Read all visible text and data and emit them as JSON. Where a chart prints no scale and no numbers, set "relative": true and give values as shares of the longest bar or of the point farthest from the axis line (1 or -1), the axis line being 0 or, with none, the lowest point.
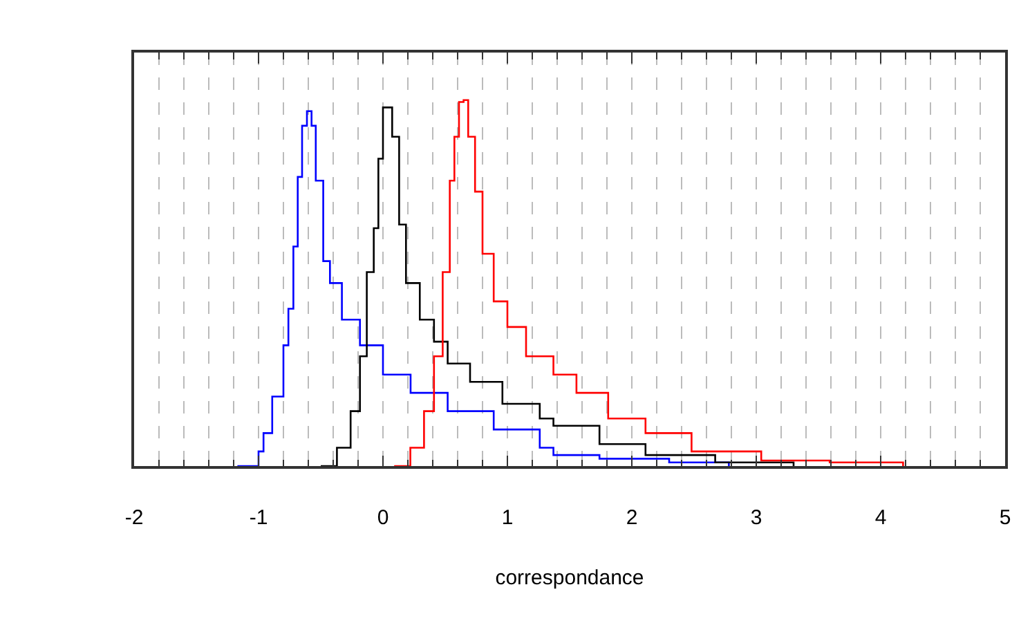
{
  "chart_data": {
    "type": "step",
    "relative": true,
    "xlabel": "correspondance",
    "xlim": [
      -2,
      5
    ],
    "xticks": [
      -2,
      -1,
      0,
      1,
      2,
      3,
      4,
      5
    ],
    "grid": "x",
    "legend": false,
    "series": [
      {
        "color": "#0000ff",
        "x": [
          -1.17,
          -1.0,
          -0.96,
          -0.89,
          -0.8,
          -0.76,
          -0.72,
          -0.685,
          -0.65,
          -0.611,
          -0.574,
          -0.54,
          -0.48,
          -0.426,
          -0.33,
          -0.185,
          0.0,
          0.222,
          0.52,
          0.89,
          1.26,
          1.37,
          1.74,
          2.3,
          2.78
        ],
        "values": [
          0,
          0.04,
          0.09,
          0.19,
          0.33,
          0.43,
          0.6,
          0.79,
          0.93,
          0.97,
          0.93,
          0.78,
          0.56,
          0.5,
          0.4,
          0.33,
          0.25,
          0.2,
          0.15,
          0.1,
          0.05,
          0.03,
          0.02,
          0.01,
          0
        ]
      },
      {
        "color": "#000000",
        "x": [
          -0.5,
          -0.37,
          -0.26,
          -0.185,
          -0.13,
          -0.074,
          -0.037,
          0.0,
          0.037,
          0.074,
          0.13,
          0.185,
          0.296,
          0.41,
          0.52,
          0.7,
          0.96,
          1.26,
          1.37,
          1.74,
          2.11,
          2.67,
          3.3
        ],
        "values": [
          0,
          0.05,
          0.15,
          0.3,
          0.53,
          0.65,
          0.84,
          0.98,
          0.98,
          0.9,
          0.66,
          0.5,
          0.4,
          0.34,
          0.28,
          0.23,
          0.17,
          0.13,
          0.11,
          0.06,
          0.03,
          0.01,
          0
        ]
      },
      {
        "color": "#ff0000",
        "x": [
          0.09,
          0.22,
          0.33,
          0.41,
          0.48,
          0.537,
          0.574,
          0.611,
          0.648,
          0.685,
          0.74,
          0.8,
          0.89,
          1.0,
          1.15,
          1.37,
          1.555,
          1.81,
          2.11,
          2.48,
          3.04,
          3.59,
          4.18
        ],
        "values": [
          0,
          0.05,
          0.15,
          0.3,
          0.53,
          0.78,
          0.9,
          0.995,
          1.0,
          0.9,
          0.75,
          0.58,
          0.45,
          0.38,
          0.3,
          0.25,
          0.2,
          0.13,
          0.09,
          0.04,
          0.015,
          0.01,
          0
        ]
      }
    ]
  }
}
